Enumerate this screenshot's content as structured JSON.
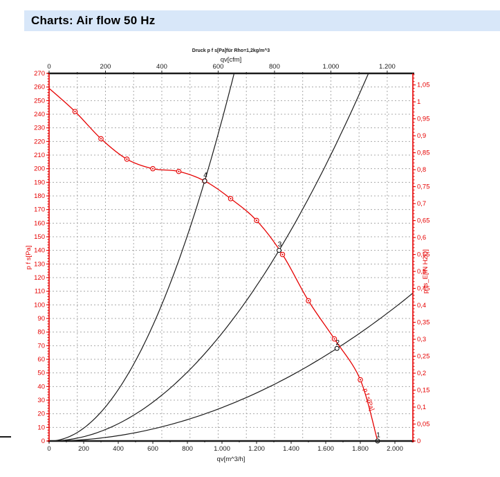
{
  "header": {
    "title": "Charts: Air flow 50 Hz",
    "bg_color": "#d8e7f9",
    "text_color": "#000000"
  },
  "chart_data": {
    "type": "line",
    "title": "Druck p f s[Pa]für Rho=1,2kg/m^3",
    "colors": {
      "primary_red": "#e60000",
      "curve_black": "#1a1a1a",
      "grid": "#a8a8a8",
      "axis_black": "#1a1a1a"
    },
    "axes": {
      "x_bottom": {
        "label": "qv[m^3/h]",
        "min": 0,
        "max": 2104,
        "major_step": 200,
        "minor_step": 100,
        "tick_labels": [
          "0",
          "200",
          "400",
          "600",
          "800",
          "1.000",
          "1.200",
          "1.400",
          "1.600",
          "1.800",
          "2.000"
        ]
      },
      "x_top": {
        "label": "qv[cfm]",
        "min": 0,
        "max": 1291,
        "major_step": 200,
        "minor_step": 100,
        "tick_labels": [
          "0",
          "200",
          "400",
          "600",
          "800",
          "1.000",
          "1.200"
        ]
      },
      "y_left": {
        "label": "p f s[Pa]",
        "min": 0,
        "max": 270,
        "major_step": 10,
        "minor_step": 2
      },
      "y_right": {
        "label": "p fs_E[IN H2O]",
        "min": 0,
        "max": 1.0833,
        "major_step": 0.05,
        "minor_step": 0.01,
        "pa_per_unit": 249.089,
        "tick_labels": [
          "0",
          "0,05",
          "0,1",
          "0,15",
          "0,2",
          "0,25",
          "0,3",
          "0,35",
          "0,4",
          "0,45",
          "0,5",
          "0,55",
          "0,6",
          "0,65",
          "0,7",
          "0,75",
          "0,8",
          "0,85",
          "0,9",
          "0,95",
          "1",
          "1,05"
        ]
      }
    },
    "grid": {
      "horizontal_step_pa": 10,
      "vertical_step_cfm": 100
    },
    "series": [
      {
        "name": "fan-pressure-curve",
        "label": "p f s[Pa]",
        "color": "#e60000",
        "points": [
          [
            0,
            259
          ],
          [
            150,
            242
          ],
          [
            300,
            222
          ],
          [
            450,
            207
          ],
          [
            600,
            200
          ],
          [
            750,
            198
          ],
          [
            900,
            191
          ],
          [
            1050,
            178
          ],
          [
            1200,
            162
          ],
          [
            1350,
            137
          ],
          [
            1500,
            103
          ],
          [
            1650,
            75
          ],
          [
            1800,
            45
          ],
          [
            1900,
            0
          ]
        ],
        "markers": [
          [
            150,
            242
          ],
          [
            300,
            222
          ],
          [
            450,
            207
          ],
          [
            600,
            200
          ],
          [
            750,
            198
          ],
          [
            900,
            191
          ],
          [
            1050,
            178
          ],
          [
            1200,
            162
          ],
          [
            1350,
            137
          ],
          [
            1500,
            103
          ],
          [
            1650,
            75
          ],
          [
            1800,
            45
          ]
        ]
      },
      {
        "name": "system-curve-1",
        "color": "#1a1a1a",
        "parabola_k": 0.0002358,
        "q_end": 1070
      },
      {
        "name": "system-curve-2",
        "color": "#1a1a1a",
        "parabola_k": 7.915e-05,
        "q_end": 1847
      },
      {
        "name": "system-curve-3",
        "color": "#1a1a1a",
        "parabola_k": 2.453e-05,
        "q_end": 2104
      }
    ],
    "operating_points": [
      {
        "label": "1",
        "q": 1900,
        "p": 0
      },
      {
        "label": "2",
        "q": 1665,
        "p": 68
      },
      {
        "label": "3",
        "q": 1330,
        "p": 140
      },
      {
        "label": "4",
        "q": 900,
        "p": 191
      }
    ],
    "curve_end_label": {
      "text": "p f s[Pa]",
      "q": 1838,
      "p": 30,
      "angle_deg": 72
    }
  }
}
